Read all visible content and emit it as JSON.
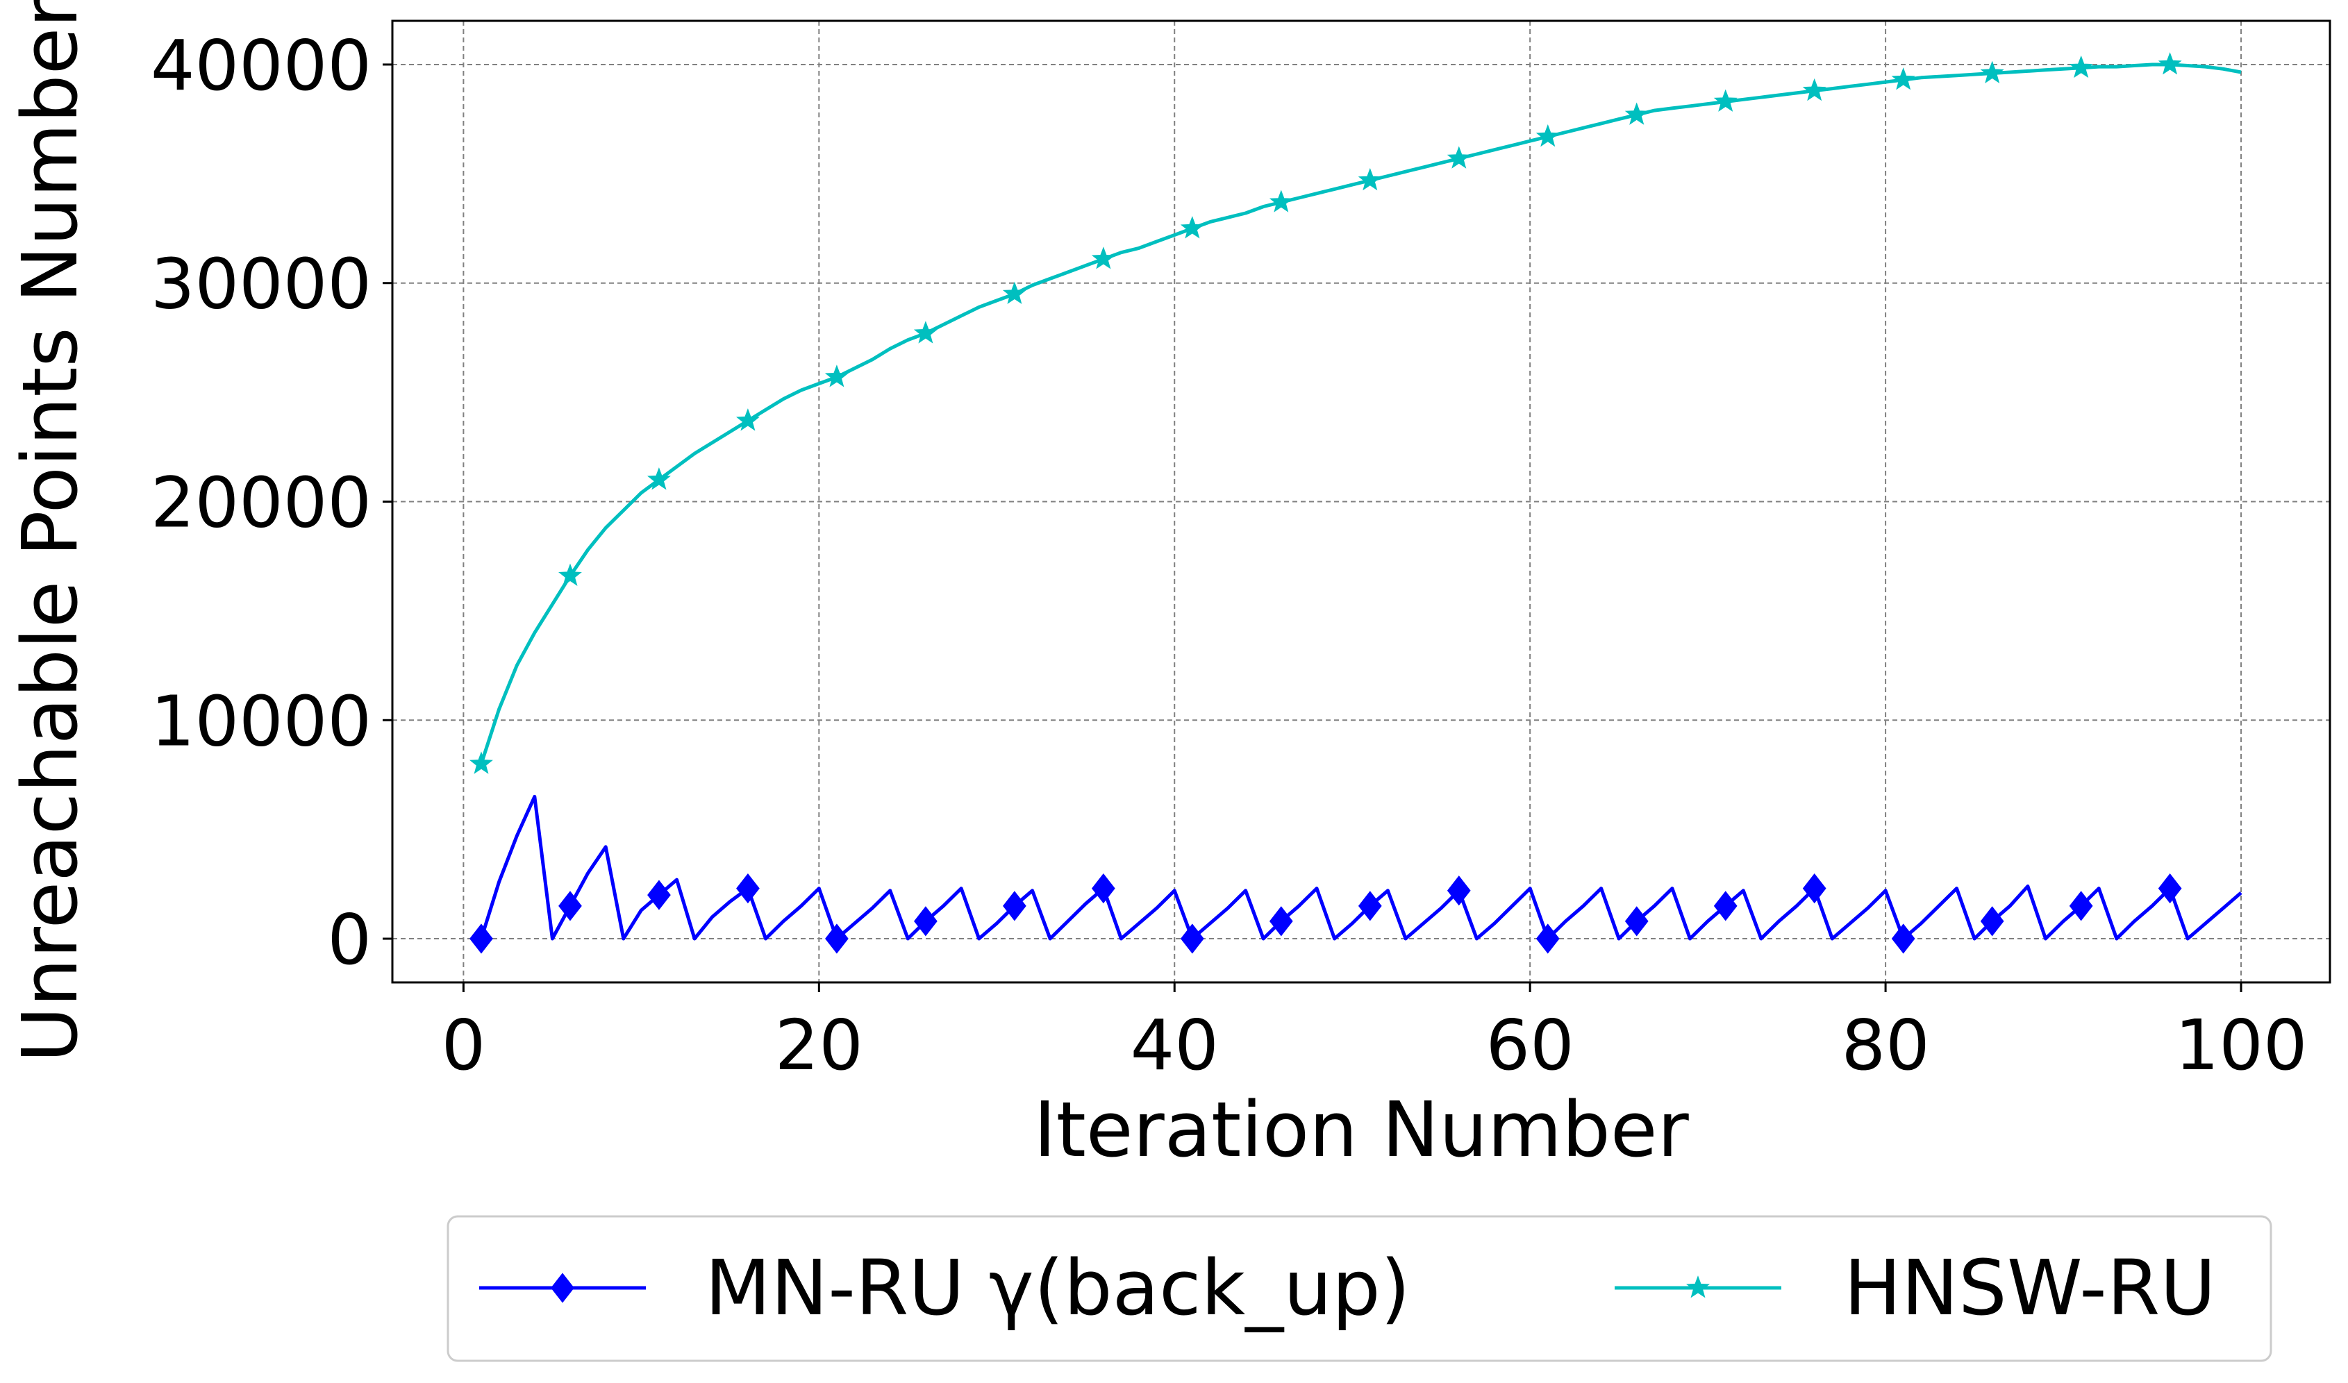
{
  "chart_data": {
    "type": "line",
    "title": "",
    "xlabel": "Iteration Number",
    "ylabel": "Unreachable Points Number",
    "xlim": [
      -4,
      105
    ],
    "ylim": [
      -2000,
      42000
    ],
    "xticks": [
      0,
      20,
      40,
      60,
      80,
      100
    ],
    "yticks": [
      0,
      10000,
      20000,
      30000,
      40000
    ],
    "grid": true,
    "legend_position": "bottom-center-outside",
    "series": [
      {
        "name": "MN-RU γ(back_up)",
        "color": "#0000ff",
        "marker": "diamond",
        "marker_every": 5,
        "x": [
          1,
          2,
          3,
          4,
          5,
          6,
          7,
          8,
          9,
          10,
          11,
          12,
          13,
          14,
          15,
          16,
          17,
          18,
          19,
          20,
          21,
          22,
          23,
          24,
          25,
          26,
          27,
          28,
          29,
          30,
          31,
          32,
          33,
          34,
          35,
          36,
          37,
          38,
          39,
          40,
          41,
          42,
          43,
          44,
          45,
          46,
          47,
          48,
          49,
          50,
          51,
          52,
          53,
          54,
          55,
          56,
          57,
          58,
          59,
          60,
          61,
          62,
          63,
          64,
          65,
          66,
          67,
          68,
          69,
          70,
          71,
          72,
          73,
          74,
          75,
          76,
          77,
          78,
          79,
          80,
          81,
          82,
          83,
          84,
          85,
          86,
          87,
          88,
          89,
          90,
          91,
          92,
          93,
          94,
          95,
          96,
          97,
          98,
          99,
          100
        ],
        "y": [
          0,
          2600,
          4700,
          6500,
          0,
          1500,
          3000,
          4200,
          0,
          1300,
          2000,
          2700,
          0,
          1000,
          1700,
          2300,
          0,
          800,
          1500,
          2300,
          0,
          700,
          1400,
          2200,
          0,
          800,
          1500,
          2300,
          0,
          700,
          1500,
          2200,
          0,
          800,
          1600,
          2300,
          0,
          700,
          1400,
          2200,
          0,
          700,
          1400,
          2200,
          0,
          800,
          1500,
          2300,
          0,
          700,
          1500,
          2200,
          0,
          700,
          1400,
          2200,
          0,
          700,
          1500,
          2300,
          0,
          800,
          1500,
          2300,
          0,
          800,
          1500,
          2300,
          0,
          800,
          1500,
          2200,
          0,
          800,
          1500,
          2300,
          0,
          700,
          1400,
          2200,
          0,
          700,
          1500,
          2300,
          0,
          800,
          1500,
          2400,
          0,
          800,
          1500,
          2300,
          0,
          800,
          1500,
          2300,
          0,
          700,
          1400,
          2100
        ]
      },
      {
        "name": "HNSW-RU",
        "color": "#00bfbf",
        "marker": "star",
        "marker_every": 5,
        "x": [
          1,
          2,
          3,
          4,
          5,
          6,
          7,
          8,
          9,
          10,
          11,
          12,
          13,
          14,
          15,
          16,
          17,
          18,
          19,
          20,
          21,
          22,
          23,
          24,
          25,
          26,
          27,
          28,
          29,
          30,
          31,
          32,
          33,
          34,
          35,
          36,
          37,
          38,
          39,
          40,
          41,
          42,
          43,
          44,
          45,
          46,
          47,
          48,
          49,
          50,
          51,
          52,
          53,
          54,
          55,
          56,
          57,
          58,
          59,
          60,
          61,
          62,
          63,
          64,
          65,
          66,
          67,
          68,
          69,
          70,
          71,
          72,
          73,
          74,
          75,
          76,
          77,
          78,
          79,
          80,
          81,
          82,
          83,
          84,
          85,
          86,
          87,
          88,
          89,
          90,
          91,
          92,
          93,
          94,
          95,
          96,
          97,
          98,
          99,
          100
        ],
        "y": [
          8000,
          10500,
          12500,
          14000,
          15300,
          16600,
          17800,
          18800,
          19600,
          20400,
          21000,
          21600,
          22200,
          22700,
          23200,
          23700,
          24200,
          24700,
          25100,
          25400,
          25700,
          26100,
          26500,
          27000,
          27400,
          27700,
          28100,
          28500,
          28900,
          29200,
          29500,
          29900,
          30200,
          30500,
          30800,
          31100,
          31400,
          31600,
          31900,
          32200,
          32500,
          32800,
          33000,
          33200,
          33500,
          33700,
          33900,
          34100,
          34300,
          34500,
          34700,
          34900,
          35100,
          35300,
          35500,
          35700,
          35900,
          36100,
          36300,
          36500,
          36700,
          36900,
          37100,
          37300,
          37500,
          37700,
          37900,
          38000,
          38100,
          38200,
          38300,
          38400,
          38500,
          38600,
          38700,
          38800,
          38900,
          39000,
          39100,
          39200,
          39300,
          39400,
          39450,
          39500,
          39550,
          39600,
          39650,
          39700,
          39750,
          39800,
          39850,
          39900,
          39900,
          39950,
          40000,
          40000,
          39950,
          39900,
          39800,
          39650
        ]
      }
    ]
  }
}
